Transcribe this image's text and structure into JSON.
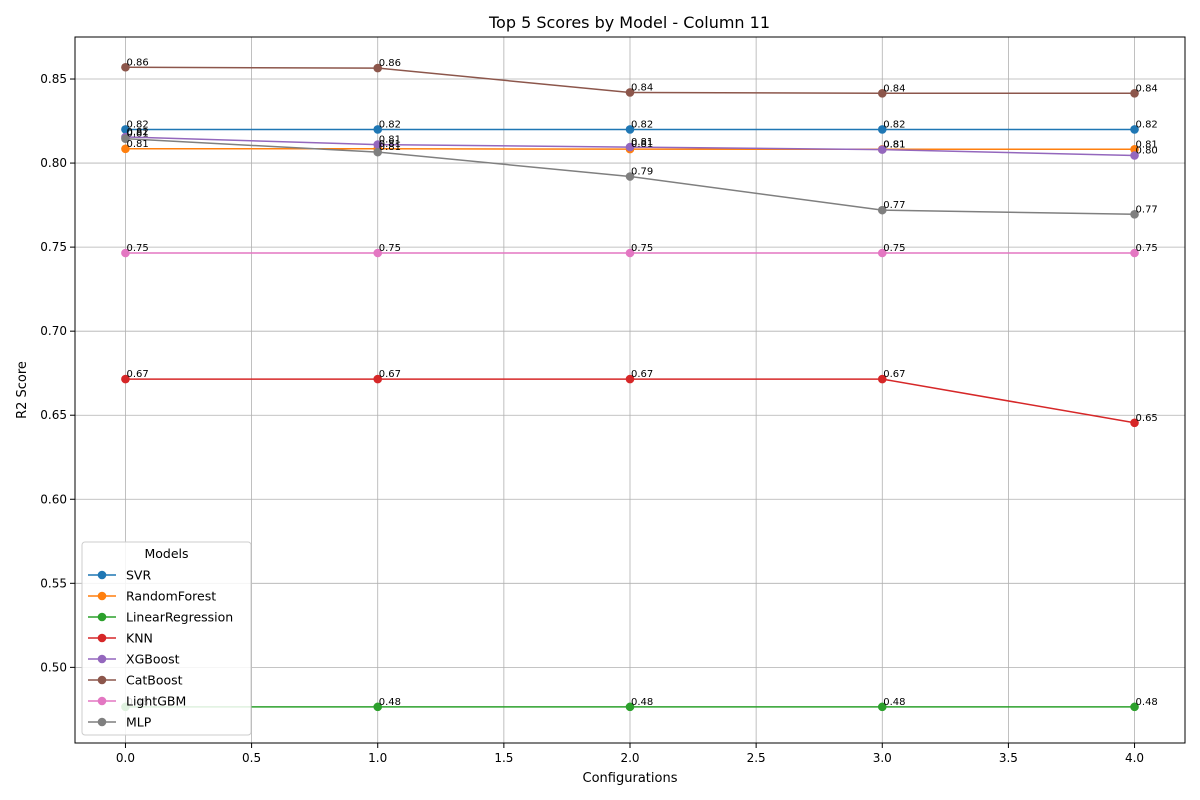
{
  "chart_data": {
    "type": "line",
    "title": "Top 5 Scores by Model - Column 11",
    "xlabel": "Configurations",
    "ylabel": "R2 Score",
    "x": [
      0,
      1,
      2,
      3,
      4
    ],
    "xlim": [
      -0.2,
      4.2
    ],
    "ylim": [
      0.455,
      0.875
    ],
    "xticks": [
      0.0,
      0.5,
      1.0,
      1.5,
      2.0,
      2.5,
      3.0,
      3.5,
      4.0
    ],
    "xtick_labels": [
      "0.0",
      "0.5",
      "1.0",
      "1.5",
      "2.0",
      "2.5",
      "3.0",
      "3.5",
      "4.0"
    ],
    "yticks": [
      0.5,
      0.55,
      0.6,
      0.65,
      0.7,
      0.75,
      0.8,
      0.85
    ],
    "ytick_labels": [
      "0.50",
      "0.55",
      "0.60",
      "0.65",
      "0.70",
      "0.75",
      "0.80",
      "0.85"
    ],
    "grid": true,
    "legend": {
      "title": "Models",
      "placement": "lower-left"
    },
    "series": [
      {
        "name": "SVR",
        "color": "#1f77b4",
        "values": [
          0.82,
          0.82,
          0.82,
          0.82,
          0.82
        ],
        "labels": [
          "0.82",
          "0.82",
          "0.82",
          "0.82",
          "0.82"
        ]
      },
      {
        "name": "RandomForest",
        "color": "#ff7f0e",
        "values": [
          0.8085,
          0.8085,
          0.8083,
          0.8082,
          0.8082
        ],
        "labels": [
          "0.81",
          "0.81",
          "0.81",
          "0.81",
          "0.81"
        ]
      },
      {
        "name": "LinearRegression",
        "color": "#2ca02c",
        "values": [
          0.4765,
          0.4765,
          0.4765,
          0.4765,
          0.4765
        ],
        "labels": [
          "0.48",
          "0.48",
          "0.48",
          "0.48",
          "0.48"
        ]
      },
      {
        "name": "KNN",
        "color": "#d62728",
        "values": [
          0.6715,
          0.6715,
          0.6715,
          0.6715,
          0.6455
        ],
        "labels": [
          "0.67",
          "0.67",
          "0.67",
          "0.67",
          "0.65"
        ]
      },
      {
        "name": "XGBoost",
        "color": "#9467bd",
        "values": [
          0.8155,
          0.811,
          0.8095,
          0.808,
          0.8045
        ],
        "labels": [
          "0.82",
          "0.81",
          "0.81",
          "0.81",
          "0.80"
        ]
      },
      {
        "name": "CatBoost",
        "color": "#8c564b",
        "values": [
          0.857,
          0.8565,
          0.842,
          0.8415,
          0.8415
        ],
        "labels": [
          "0.86",
          "0.86",
          "0.84",
          "0.84",
          "0.84"
        ]
      },
      {
        "name": "LightGBM",
        "color": "#e377c2",
        "values": [
          0.7465,
          0.7465,
          0.7465,
          0.7465,
          0.7465
        ],
        "labels": [
          "0.75",
          "0.75",
          "0.75",
          "0.75",
          "0.75"
        ]
      },
      {
        "name": "MLP",
        "color": "#7f7f7f",
        "values": [
          0.8145,
          0.8065,
          0.792,
          0.772,
          0.7695
        ],
        "labels": [
          "0.81",
          "0.81",
          "0.79",
          "0.77",
          "0.77"
        ]
      }
    ]
  }
}
